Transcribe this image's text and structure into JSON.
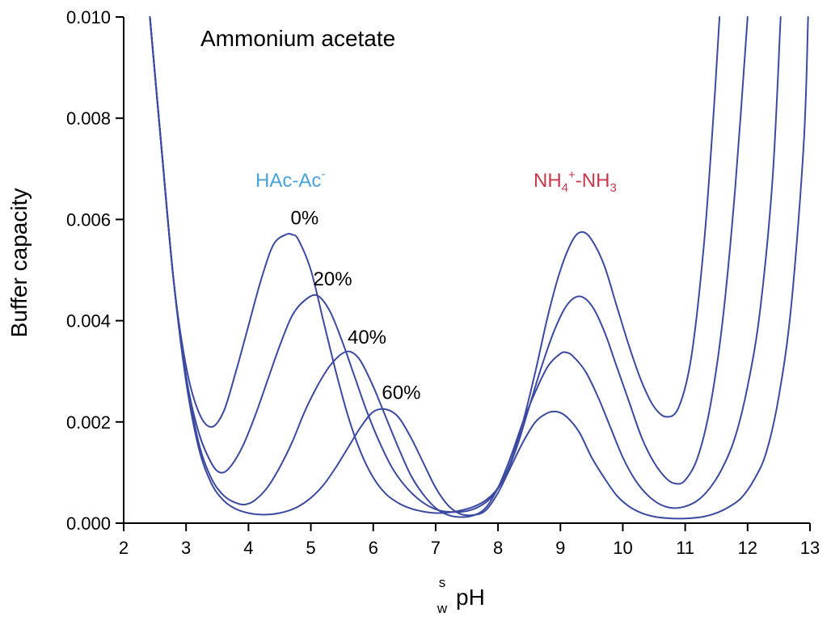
{
  "chart_data": {
    "type": "line",
    "title": "Ammonium acetate",
    "xlabel_super": "s",
    "xlabel_sub": "w",
    "xlabel_main": "pH",
    "ylabel": "Buffer capacity",
    "xlim": [
      2,
      13
    ],
    "ylim": [
      0,
      0.01
    ],
    "x_ticks": [
      "2",
      "3",
      "4",
      "5",
      "6",
      "7",
      "8",
      "9",
      "10",
      "11",
      "12",
      "13"
    ],
    "y_ticks": [
      "0.000",
      "0.002",
      "0.004",
      "0.006",
      "0.008",
      "0.010"
    ],
    "colors": {
      "line": "#3b4aa0",
      "hac_label": "#4aa3d8",
      "nh_label": "#c8374a"
    },
    "annotations": {
      "hac_label": "HAc-Ac",
      "hac_sup": "-",
      "nh_part1": "NH",
      "nh_sub1": "4",
      "nh_sup1": "+",
      "nh_part2": "-NH",
      "nh_sub2": "3"
    },
    "series": [
      {
        "name": "0%",
        "x": [
          2.42,
          2.6,
          2.8,
          3.0,
          3.2,
          3.4,
          3.6,
          3.8,
          4.0,
          4.2,
          4.4,
          4.6,
          4.7,
          4.8,
          5.0,
          5.2,
          5.4,
          5.6,
          5.8,
          6.0,
          6.2,
          6.4,
          6.6,
          6.8,
          7.0,
          7.2,
          7.4,
          7.6,
          7.8,
          8.0,
          8.2,
          8.4,
          8.6,
          8.8,
          9.0,
          9.2,
          9.35,
          9.5,
          9.7,
          9.9,
          10.1,
          10.3,
          10.5,
          10.7,
          10.9,
          11.1,
          11.3,
          11.45,
          11.55
        ],
        "y": [
          0.01,
          0.0075,
          0.0048,
          0.0031,
          0.0022,
          0.0019,
          0.0022,
          0.003,
          0.0039,
          0.0048,
          0.0055,
          0.0057,
          0.0057,
          0.0056,
          0.005,
          0.004,
          0.003,
          0.0021,
          0.0014,
          0.0009,
          0.00058,
          0.0004,
          0.00029,
          0.00023,
          0.0002,
          0.00021,
          0.00025,
          0.00032,
          0.00045,
          0.0007,
          0.0012,
          0.002,
          0.003,
          0.0041,
          0.005,
          0.0056,
          0.00575,
          0.0056,
          0.0051,
          0.0043,
          0.0035,
          0.0028,
          0.0023,
          0.0021,
          0.0023,
          0.0033,
          0.0055,
          0.008,
          0.01
        ]
      },
      {
        "name": "20%",
        "x": [
          2.42,
          2.6,
          2.8,
          3.0,
          3.2,
          3.4,
          3.55,
          3.7,
          3.9,
          4.1,
          4.3,
          4.5,
          4.7,
          4.9,
          5.1,
          5.3,
          5.5,
          5.7,
          5.9,
          6.1,
          6.3,
          6.5,
          6.7,
          6.9,
          7.1,
          7.3,
          7.5,
          7.7,
          7.9,
          8.1,
          8.3,
          8.5,
          8.7,
          8.9,
          9.1,
          9.3,
          9.5,
          9.7,
          9.9,
          10.1,
          10.3,
          10.5,
          10.7,
          10.85,
          11.0,
          11.2,
          11.4,
          11.6,
          11.8,
          12.0
        ],
        "y": [
          0.01,
          0.0075,
          0.0048,
          0.0029,
          0.0018,
          0.0012,
          0.001,
          0.0011,
          0.0015,
          0.0021,
          0.0028,
          0.0035,
          0.0041,
          0.0044,
          0.0045,
          0.0042,
          0.0036,
          0.0029,
          0.0022,
          0.0016,
          0.0011,
          0.00075,
          0.0005,
          0.00033,
          0.00024,
          0.00022,
          0.00024,
          0.00033,
          0.00052,
          0.0009,
          0.0015,
          0.0023,
          0.0031,
          0.0038,
          0.0043,
          0.00448,
          0.0043,
          0.0038,
          0.0031,
          0.0024,
          0.0017,
          0.0012,
          0.00088,
          0.00078,
          0.00085,
          0.0013,
          0.0023,
          0.004,
          0.0066,
          0.01
        ]
      },
      {
        "name": "40%",
        "x": [
          2.42,
          2.6,
          2.8,
          3.0,
          3.2,
          3.4,
          3.6,
          3.8,
          3.95,
          4.1,
          4.3,
          4.5,
          4.7,
          4.9,
          5.1,
          5.3,
          5.5,
          5.65,
          5.8,
          6.0,
          6.2,
          6.4,
          6.6,
          6.8,
          7.0,
          7.2,
          7.4,
          7.6,
          7.8,
          8.0,
          8.2,
          8.4,
          8.6,
          8.8,
          9.0,
          9.1,
          9.2,
          9.4,
          9.6,
          9.8,
          10.0,
          10.2,
          10.4,
          10.6,
          10.8,
          11.0,
          11.2,
          11.4,
          11.6,
          11.8,
          12.0,
          12.2,
          12.4,
          12.53
        ],
        "y": [
          0.01,
          0.0075,
          0.0048,
          0.0029,
          0.0016,
          0.0009,
          0.00055,
          0.0004,
          0.00037,
          0.00045,
          0.0007,
          0.0011,
          0.0016,
          0.0022,
          0.0027,
          0.0031,
          0.00335,
          0.00338,
          0.0032,
          0.0027,
          0.0021,
          0.0015,
          0.00095,
          0.00057,
          0.0003,
          0.00016,
          0.00012,
          0.00015,
          0.0003,
          0.0007,
          0.0013,
          0.002,
          0.0026,
          0.0031,
          0.00335,
          0.00337,
          0.0033,
          0.003,
          0.0025,
          0.0019,
          0.0013,
          0.00085,
          0.00055,
          0.00037,
          0.0003,
          0.00033,
          0.00045,
          0.0007,
          0.0011,
          0.0017,
          0.0027,
          0.0042,
          0.0068,
          0.01
        ]
      },
      {
        "name": "60%",
        "x": [
          2.42,
          2.6,
          2.8,
          3.0,
          3.2,
          3.4,
          3.6,
          3.8,
          4.0,
          4.2,
          4.4,
          4.6,
          4.8,
          5.0,
          5.2,
          5.4,
          5.6,
          5.8,
          6.0,
          6.2,
          6.4,
          6.6,
          6.8,
          7.0,
          7.2,
          7.4,
          7.6,
          7.8,
          8.0,
          8.2,
          8.4,
          8.6,
          8.8,
          8.95,
          9.1,
          9.3,
          9.5,
          9.7,
          9.9,
          10.1,
          10.3,
          10.5,
          10.7,
          10.9,
          11.1,
          11.3,
          11.5,
          11.7,
          11.9,
          12.1,
          12.3,
          12.5,
          12.7,
          12.9,
          12.97
        ],
        "y": [
          0.01,
          0.0075,
          0.0048,
          0.0028,
          0.0015,
          0.0008,
          0.00045,
          0.00028,
          0.0002,
          0.00017,
          0.00018,
          0.00023,
          0.00033,
          0.0005,
          0.00075,
          0.0011,
          0.0015,
          0.0019,
          0.0022,
          0.00225,
          0.0021,
          0.0017,
          0.0012,
          0.0007,
          0.00035,
          0.00018,
          0.00016,
          0.00025,
          0.0006,
          0.0011,
          0.0016,
          0.002,
          0.00218,
          0.0022,
          0.0021,
          0.0018,
          0.0013,
          0.0009,
          0.00055,
          0.00033,
          0.0002,
          0.00013,
          0.0001,
          9e-05,
          0.0001,
          0.00013,
          0.0002,
          0.00032,
          0.0005,
          0.00085,
          0.0014,
          0.0025,
          0.0043,
          0.0075,
          0.01
        ]
      }
    ],
    "series_labels": [
      {
        "text": "0%",
        "x": 4.9,
        "y": 0.0059
      },
      {
        "text": "20%",
        "x": 5.35,
        "y": 0.0047
      },
      {
        "text": "40%",
        "x": 5.9,
        "y": 0.00355
      },
      {
        "text": "60%",
        "x": 6.45,
        "y": 0.00245
      }
    ]
  }
}
